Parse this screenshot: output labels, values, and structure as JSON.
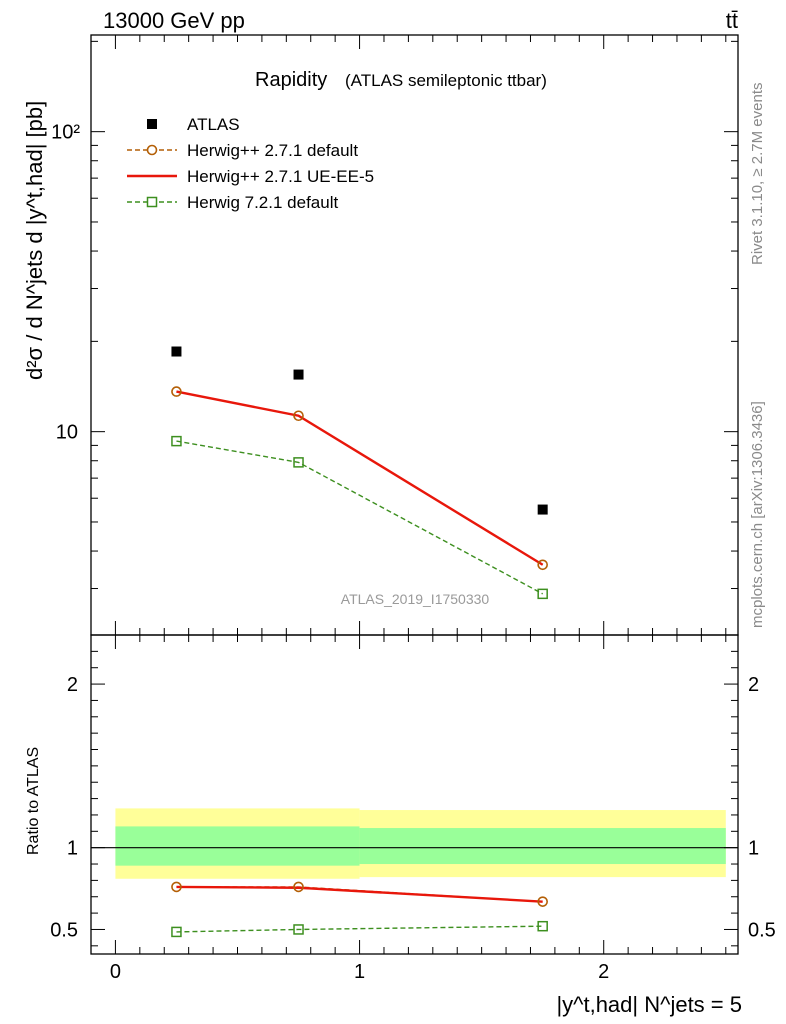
{
  "header": {
    "left": "13000 GeV pp",
    "right": "tt̄"
  },
  "side_labels": {
    "top": "Rivet 3.1.10, ≥ 2.7M events",
    "bottom": "mcplots.cern.ch [arXiv:1306.3436]"
  },
  "colors": {
    "atlas": "#000000",
    "herwigpp_default": "#b45f06",
    "herwigpp_ue": "#e8170b",
    "herwig7": "#3d8f1f",
    "band_inner": "#99ff99",
    "band_outer": "#ffff99"
  },
  "chart_data": [
    {
      "type": "scatter",
      "title": "Rapidity",
      "subtitle": "(ATLAS semileptonic ttbar)",
      "watermark": "ATLAS_2019_I1750330",
      "ylabel": "d²σ / d N^jets d |y^t,had| [pb]",
      "yscale": "log",
      "ylim": [
        2.1,
        210
      ],
      "xlim": [
        -0.1,
        2.55
      ],
      "ytick_labels": [
        "10",
        "10²"
      ],
      "legend_position": "top-left",
      "x": [
        0.25,
        0.75,
        1.75
      ],
      "series": [
        {
          "name": "ATLAS",
          "key": "atlas",
          "values": [
            18.5,
            15.5,
            5.5
          ]
        },
        {
          "name": "Herwig++ 2.7.1 default",
          "key": "herwigpp_default",
          "values": [
            13.6,
            11.3,
            3.6
          ]
        },
        {
          "name": "Herwig++ 2.7.1 UE-EE-5",
          "key": "herwigpp_ue",
          "values": [
            13.6,
            11.3,
            3.6
          ]
        },
        {
          "name": "Herwig 7.2.1 default",
          "key": "herwig7",
          "values": [
            9.3,
            7.9,
            2.88
          ]
        }
      ]
    },
    {
      "type": "line",
      "ylabel": "Ratio to ATLAS",
      "xlabel": "|y^t,had| N^jets = 5",
      "ylim": [
        0.35,
        2.3
      ],
      "xlim": [
        -0.1,
        2.55
      ],
      "xtick_labels": [
        "0",
        "1",
        "2"
      ],
      "ytick_labels": [
        "0.5",
        "1",
        "2"
      ],
      "reference_line": 1,
      "bands": [
        {
          "x_edges": [
            0,
            1,
            2.5
          ],
          "inner": [
            [
              0.89,
              1.13
            ],
            [
              0.9,
              1.12
            ]
          ],
          "outer": [
            [
              0.81,
              1.24
            ],
            [
              0.82,
              1.23
            ]
          ]
        }
      ],
      "x": [
        0.25,
        0.75,
        1.75
      ],
      "series": [
        {
          "name": "Herwig++ 2.7.1 default",
          "key": "herwigpp_default",
          "values": [
            0.76,
            0.76,
            0.67
          ]
        },
        {
          "name": "Herwig++ 2.7.1 UE-EE-5",
          "key": "herwigpp_ue",
          "values": [
            0.76,
            0.755,
            0.67
          ]
        },
        {
          "name": "Herwig 7.2.1 default",
          "key": "herwig7",
          "values": [
            0.485,
            0.5,
            0.52
          ]
        }
      ]
    }
  ]
}
